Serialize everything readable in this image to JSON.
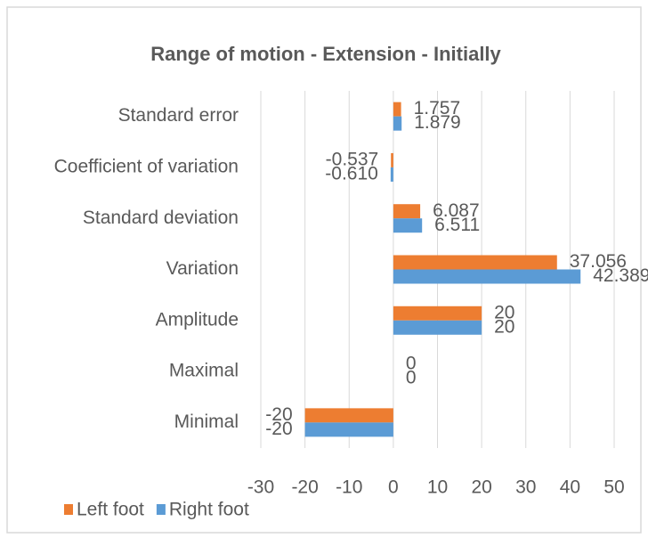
{
  "chart_data": {
    "type": "bar",
    "orientation": "horizontal",
    "title": "Range of motion - Extension - Initially",
    "categories": [
      "Standard error",
      "Coefficient of variation",
      "Standard deviation",
      "Variation",
      "Amplitude",
      "Maximal",
      "Minimal"
    ],
    "series": [
      {
        "name": "Left foot",
        "color": "#ed7d31",
        "values": [
          1.757,
          -0.537,
          6.087,
          37.056,
          20,
          0,
          -20
        ],
        "value_labels": [
          "1.757",
          "-0.537",
          "6.087",
          "37.056",
          "20",
          "0",
          "-20"
        ]
      },
      {
        "name": "Right foot",
        "color": "#5b9bd5",
        "values": [
          1.879,
          -0.61,
          6.511,
          42.389,
          20,
          0,
          -20
        ],
        "value_labels": [
          "1.879",
          "-0.610",
          "6.511",
          "42.389",
          "20",
          "0",
          "-20"
        ]
      }
    ],
    "xlim": [
      -30,
      50
    ],
    "xticks": [
      -30,
      -20,
      -10,
      0,
      10,
      20,
      30,
      40,
      50
    ],
    "grid": true,
    "legend": "bottom-left"
  }
}
